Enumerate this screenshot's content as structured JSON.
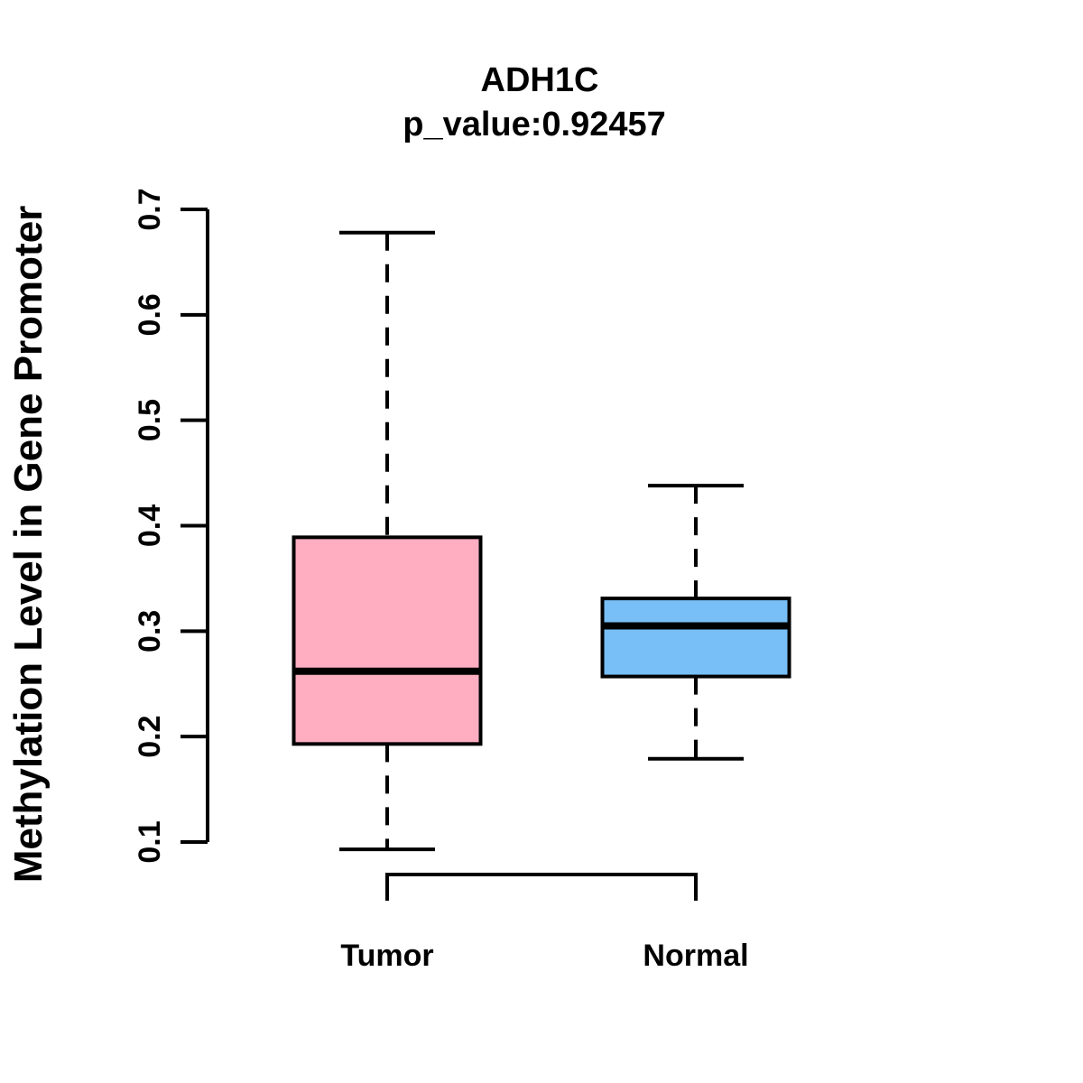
{
  "chart_data": {
    "type": "boxplot",
    "title": "ADH1C",
    "subtitle": "p_value:0.92457",
    "ylabel": "Methylation Level in Gene Promoter",
    "xlabel": "",
    "categories": [
      "Tumor",
      "Normal"
    ],
    "series": [
      {
        "name": "Tumor",
        "fill": "#FFAEC2",
        "whisker_low": 0.093,
        "q1": 0.193,
        "median": 0.262,
        "q3": 0.389,
        "whisker_high": 0.678
      },
      {
        "name": "Normal",
        "fill": "#78BFF8",
        "whisker_low": 0.179,
        "q1": 0.257,
        "median": 0.305,
        "q3": 0.331,
        "whisker_high": 0.438
      }
    ],
    "ylim": [
      0.1,
      0.7
    ],
    "y_ticks": [
      0.1,
      0.2,
      0.3,
      0.4,
      0.5,
      0.6,
      0.7
    ],
    "y_tick_labels": [
      "0.1",
      "0.2",
      "0.3",
      "0.4",
      "0.5",
      "0.6",
      "0.7"
    ],
    "grid": false,
    "legend": "none",
    "colors": {
      "stroke": "#000000",
      "background": "#FFFFFF",
      "tumor_fill": "#FFAEC2",
      "normal_fill": "#78BFF8"
    }
  }
}
